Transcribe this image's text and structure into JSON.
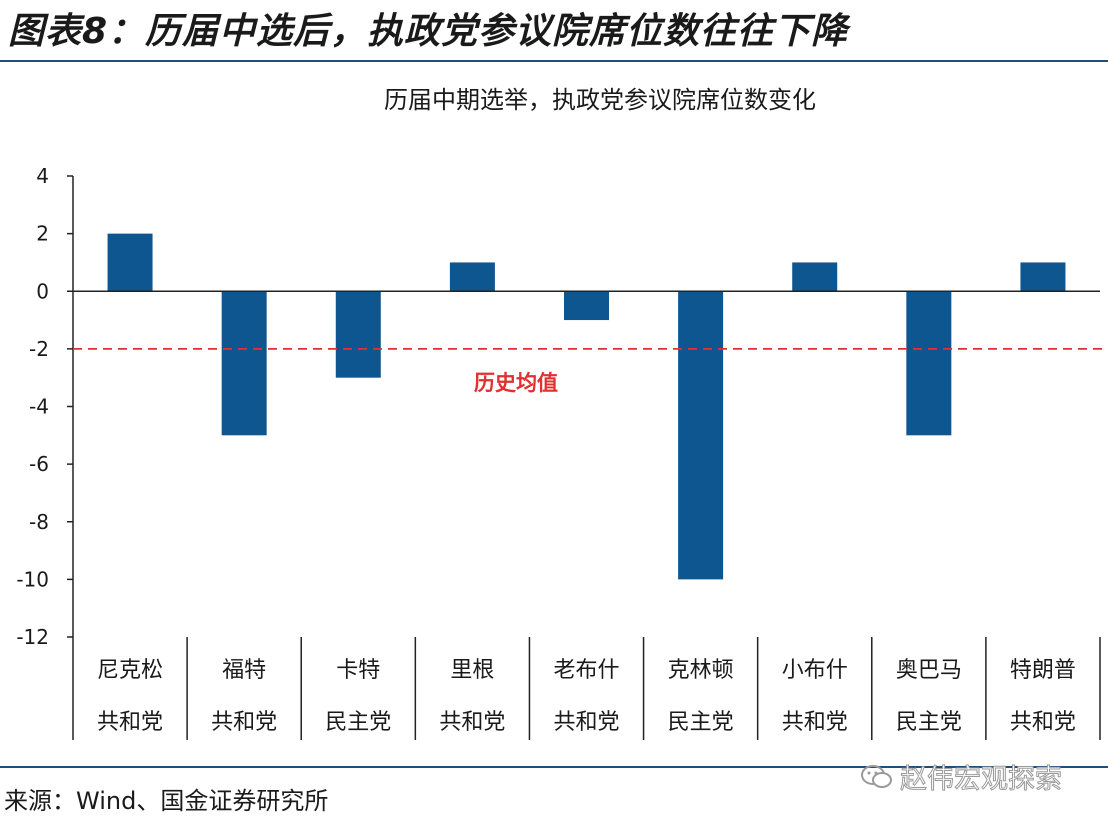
{
  "figure": {
    "title": "图表8：历届中选后，执政党参议院席位数往往下降",
    "source": "来源：Wind、国金证券研究所",
    "watermark": "赵伟宏观探索",
    "watermark_icon": "wechat-icon"
  },
  "chart_data": {
    "type": "bar",
    "title": "历届中期选举，执政党参议院席位数变化",
    "xlabel": "",
    "ylabel": "",
    "categories": [
      {
        "name": "尼克松",
        "party": "共和党"
      },
      {
        "name": "福特",
        "party": "共和党"
      },
      {
        "name": "卡特",
        "party": "民主党"
      },
      {
        "name": "里根",
        "party": "共和党"
      },
      {
        "name": "老布什",
        "party": "共和党"
      },
      {
        "name": "克林顿",
        "party": "民主党"
      },
      {
        "name": "小布什",
        "party": "共和党"
      },
      {
        "name": "奥巴马",
        "party": "民主党"
      },
      {
        "name": "特朗普",
        "party": "共和党"
      }
    ],
    "values": [
      2,
      -5,
      -3,
      1,
      -1,
      -10,
      1,
      -5,
      1
    ],
    "ylim": [
      -12,
      4
    ],
    "yticks": [
      4,
      2,
      0,
      -2,
      -4,
      -6,
      -8,
      -10,
      -12
    ],
    "reference_line": {
      "value": -2,
      "label": "历史均值",
      "color": "#e03030",
      "style": "dashed"
    },
    "bar_color": "#0e5690",
    "grid": false,
    "legend": "none"
  }
}
